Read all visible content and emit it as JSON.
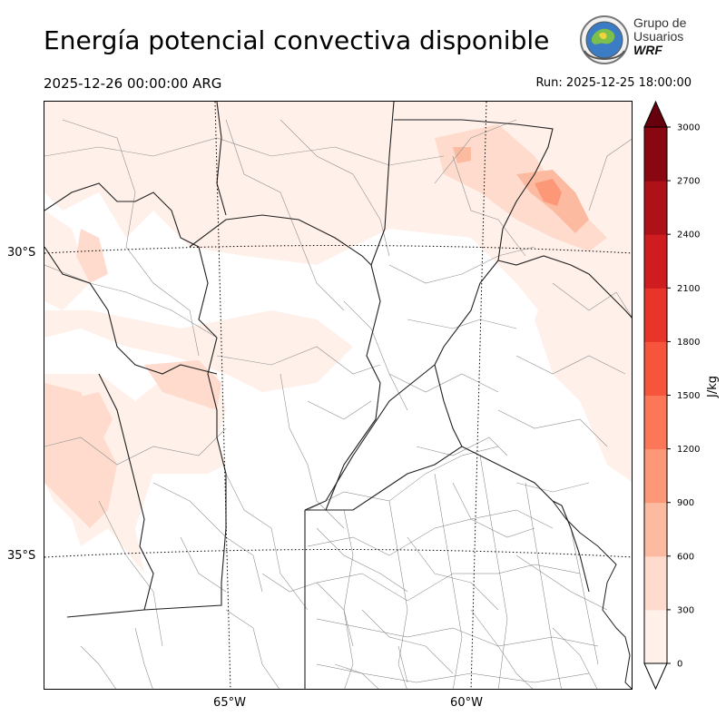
{
  "header": {
    "title": "Energía potencial convectiva disponible",
    "valid_time": "2025-12-26 00:00:00 ARG",
    "run": "Run: 2025-12-25 18:00:00"
  },
  "logo": {
    "line1": "Grupo de",
    "line2": "Usuarios",
    "line3": "WRF"
  },
  "map": {
    "lat_labels": [
      "30°S",
      "35°S"
    ],
    "lon_labels": [
      "65°W",
      "60°W"
    ]
  },
  "colorbar": {
    "label": "J/kg",
    "ticks": [
      "0",
      "300",
      "600",
      "900",
      "1200",
      "1500",
      "1800",
      "2100",
      "2400",
      "2700",
      "3000"
    ],
    "colors": [
      "#fff0ea",
      "#fedbcc",
      "#fcbba1",
      "#fc9878",
      "#fb7757",
      "#f6553c",
      "#e93529",
      "#cf1c1e",
      "#ae1117",
      "#880710"
    ],
    "over_color": "#67000d"
  }
}
